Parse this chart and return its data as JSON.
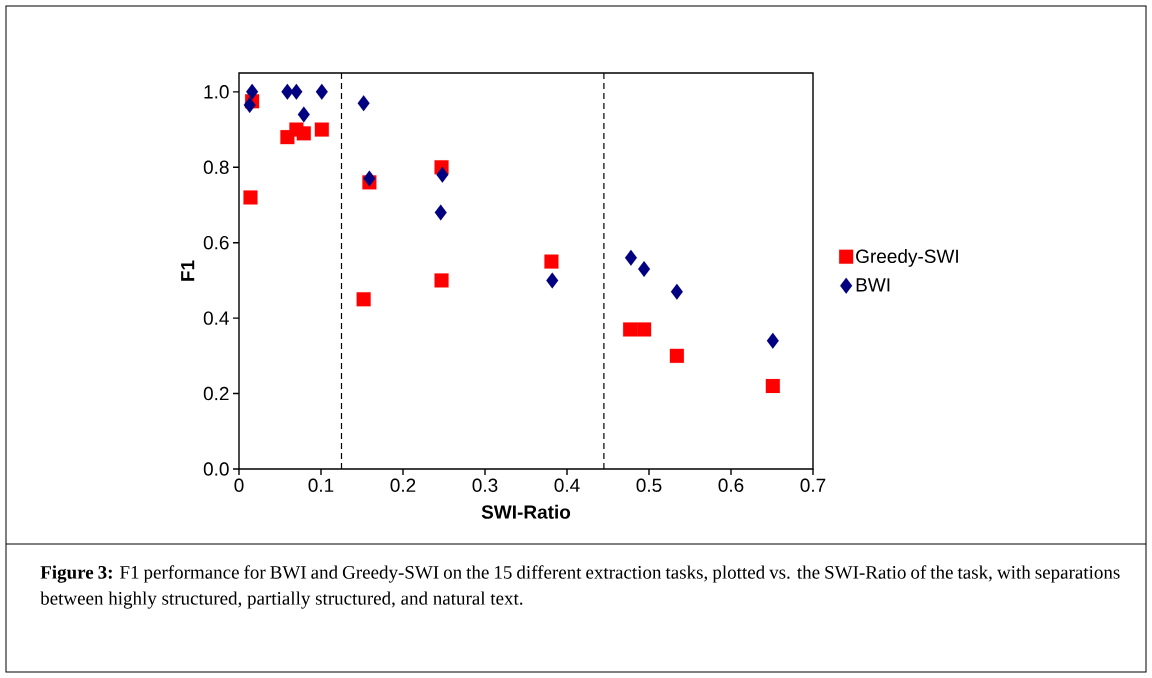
{
  "chart_data": {
    "type": "scatter",
    "xlabel": "SWI-Ratio",
    "ylabel": "F1",
    "xlim": [
      0,
      0.7
    ],
    "ylim": [
      0,
      1.05
    ],
    "xticks": [
      0,
      0.1,
      0.2,
      0.3,
      0.4,
      0.5,
      0.6,
      0.7
    ],
    "yticks": [
      {
        "value": 0,
        "label": "0.0"
      },
      0.2,
      0.4,
      0.6,
      0.8,
      {
        "value": 1,
        "label": "1.0"
      }
    ],
    "grid": false,
    "legend": "right",
    "series": [
      {
        "name": "Greedy-SWI",
        "color": "#ff0000",
        "marker": "square",
        "x": [
          0.016,
          0.014,
          0.059,
          0.07,
          0.079,
          0.101,
          0.152,
          0.159,
          0.247,
          0.247,
          0.381,
          0.477,
          0.494,
          0.534,
          0.651
        ],
        "values": [
          0.975,
          0.72,
          0.88,
          0.9,
          0.89,
          0.9,
          0.45,
          0.76,
          0.8,
          0.5,
          0.55,
          0.37,
          0.37,
          0.3,
          0.22
        ]
      },
      {
        "name": "BWI",
        "color": "#000080",
        "marker": "diamond",
        "x": [
          0.016,
          0.013,
          0.059,
          0.07,
          0.079,
          0.101,
          0.152,
          0.159,
          0.248,
          0.246,
          0.382,
          0.478,
          0.494,
          0.534,
          0.651
        ],
        "values": [
          1.0,
          0.965,
          1.0,
          1.0,
          0.94,
          1.0,
          0.97,
          0.77,
          0.78,
          0.68,
          0.5,
          0.56,
          0.53,
          0.47,
          0.34
        ]
      }
    ],
    "ref_lines": [
      {
        "axis": "x",
        "value": 0.125,
        "color": "#000000",
        "line_style": "dashed"
      },
      {
        "axis": "x",
        "value": 0.445,
        "color": "#000000",
        "line_style": "dashed"
      }
    ],
    "annotations": [
      "**Figure 3:** F1 performance for BWI and Greedy-SWI on the 15 different extraction tasks, plotted vs. the SWI-Ratio of the task, with separations between highly structured, partially structured, and natural text."
    ]
  }
}
